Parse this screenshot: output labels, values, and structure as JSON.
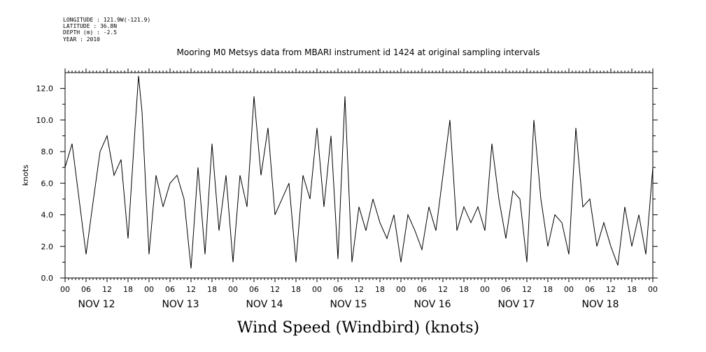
{
  "header": {
    "longitude": "LONGITUDE : 121.9W(-121.9)",
    "latitude": "LATITUDE : 36.8N",
    "depth": "DEPTH (m) : -2.5",
    "year": "YEAR : 2010"
  },
  "chart_data": {
    "type": "line",
    "title": "Mooring M0 Metsys data from MBARI instrument id 1424 at original sampling intervals",
    "xlabel": "Wind Speed (Windbird) (knots)",
    "ylabel": "knots",
    "ylim": [
      0,
      13
    ],
    "yticks": [
      "0.0",
      "2.0",
      "4.0",
      "6.0",
      "8.0",
      "10.0",
      "12.0"
    ],
    "x_hour_ticks": [
      "00",
      "06",
      "12",
      "18"
    ],
    "days": [
      "NOV 12",
      "NOV 13",
      "NOV 14",
      "NOV 15",
      "NOV 16",
      "NOV 17",
      "NOV 18"
    ],
    "x_unit": "hours since 2010-11-12 00:00",
    "xlim": [
      0,
      168
    ],
    "grid": false,
    "series": [
      {
        "name": "",
        "x": [
          0,
          2,
          4,
          6,
          8,
          10,
          12,
          14,
          16,
          18,
          20,
          21,
          22,
          24,
          26,
          28,
          30,
          32,
          34,
          36,
          38,
          40,
          42,
          44,
          46,
          48,
          50,
          52,
          54,
          56,
          58,
          60,
          62,
          64,
          66,
          68,
          70,
          72,
          74,
          76,
          78,
          80,
          82,
          84,
          86,
          88,
          90,
          92,
          94,
          96,
          98,
          100,
          102,
          104,
          106,
          108,
          110,
          112,
          114,
          116,
          118,
          120,
          122,
          124,
          126,
          128,
          130,
          132,
          134,
          136,
          138,
          140,
          142,
          144,
          146,
          148,
          150,
          152,
          154,
          156,
          158,
          160,
          162,
          164,
          166,
          168
        ],
        "y": [
          7.0,
          8.5,
          5.0,
          1.5,
          4.8,
          8.0,
          9.0,
          6.5,
          7.5,
          2.5,
          9.5,
          12.8,
          10.5,
          1.5,
          6.5,
          4.5,
          6.0,
          6.5,
          5.0,
          0.6,
          7.0,
          1.5,
          8.5,
          3.0,
          6.5,
          1.0,
          6.5,
          4.5,
          11.5,
          6.5,
          9.5,
          4.0,
          5.0,
          6.0,
          1.0,
          6.5,
          5.0,
          9.5,
          4.5,
          9.0,
          1.2,
          11.5,
          1.0,
          4.5,
          3.0,
          5.0,
          3.5,
          2.5,
          4.0,
          1.0,
          4.0,
          3.0,
          1.8,
          4.5,
          3.0,
          6.5,
          10.0,
          3.0,
          4.5,
          3.5,
          4.5,
          3.0,
          8.5,
          5.0,
          2.5,
          5.5,
          5.0,
          1.0,
          10.0,
          5.0,
          2.0,
          4.0,
          3.5,
          1.5,
          9.5,
          4.5,
          5.0,
          2.0,
          3.5,
          2.0,
          0.8,
          4.5,
          2.0,
          4.0,
          1.5,
          7.0
        ]
      }
    ]
  }
}
